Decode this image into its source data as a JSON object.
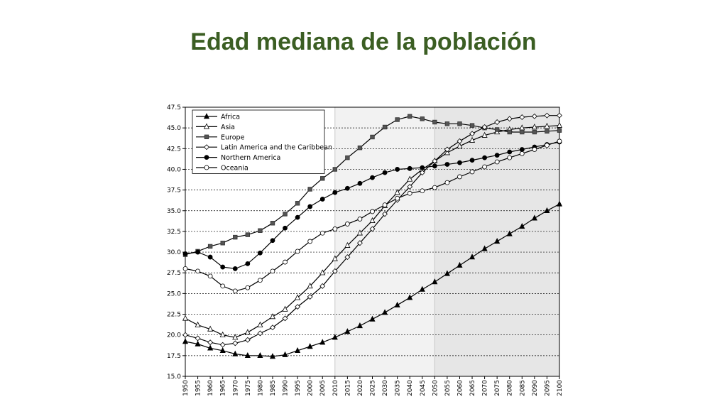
{
  "slide": {
    "title": "Edad mediana de la población"
  },
  "chart_data": {
    "type": "line",
    "title": "",
    "xlabel": "",
    "ylabel": "",
    "ylim": [
      15.0,
      47.5
    ],
    "y_ticks": [
      "15.0",
      "17.5",
      "20.0",
      "22.5",
      "25.0",
      "27.5",
      "30.0",
      "32.5",
      "35.0",
      "37.5",
      "40.0",
      "42.5",
      "45.0",
      "47.5"
    ],
    "x": [
      1950,
      1955,
      1960,
      1965,
      1970,
      1975,
      1980,
      1985,
      1990,
      1995,
      2000,
      2005,
      2010,
      2015,
      2020,
      2025,
      2030,
      2035,
      2040,
      2045,
      2050,
      2055,
      2060,
      2065,
      2070,
      2075,
      2080,
      2085,
      2090,
      2095,
      2100
    ],
    "x_tick_labels": [
      "1950",
      "1955",
      "1960",
      "1965",
      "1970",
      "1975",
      "1980",
      "1985",
      "1990",
      "1995",
      "2000",
      "2005",
      "2010",
      "2015",
      "2020",
      "2025",
      "2030",
      "2035",
      "2040",
      "2045",
      "2050",
      "2055",
      "2060",
      "2065",
      "2070",
      "2075",
      "2080",
      "2085",
      "2090",
      "2095",
      "2100"
    ],
    "background_bands": [
      {
        "from": 1950,
        "to": 2010,
        "color": "#ffffff"
      },
      {
        "from": 2010,
        "to": 2050,
        "color": "#f2f2f2"
      },
      {
        "from": 2050,
        "to": 2100,
        "color": "#e6e6e6"
      }
    ],
    "grid": "horizontal-dashed",
    "legend_position": "top-left",
    "series": [
      {
        "name": "Africa",
        "marker": "triangle-filled",
        "values": [
          19.2,
          18.9,
          18.4,
          18.1,
          17.7,
          17.5,
          17.5,
          17.4,
          17.6,
          18.1,
          18.6,
          19.1,
          19.7,
          20.4,
          21.1,
          21.9,
          22.7,
          23.6,
          24.5,
          25.5,
          26.4,
          27.4,
          28.4,
          29.4,
          30.4,
          31.3,
          32.2,
          33.1,
          34.1,
          35.0,
          35.8
        ]
      },
      {
        "name": "Asia",
        "marker": "triangle-open",
        "values": [
          22.0,
          21.2,
          20.7,
          20.0,
          19.7,
          20.3,
          21.2,
          22.2,
          23.1,
          24.5,
          25.9,
          27.5,
          29.2,
          30.8,
          32.3,
          33.8,
          35.6,
          37.2,
          38.8,
          40.0,
          41.0,
          42.0,
          42.8,
          43.5,
          44.1,
          44.5,
          44.8,
          45.0,
          45.1,
          45.2,
          45.3
        ]
      },
      {
        "name": "Europe",
        "marker": "square-filled",
        "values": [
          29.7,
          30.1,
          30.7,
          31.1,
          31.8,
          32.1,
          32.6,
          33.5,
          34.6,
          35.9,
          37.6,
          38.9,
          40.0,
          41.4,
          42.6,
          43.9,
          45.1,
          46.0,
          46.4,
          46.1,
          45.7,
          45.5,
          45.5,
          45.3,
          45.0,
          44.8,
          44.5,
          44.5,
          44.5,
          44.6,
          44.7
        ]
      },
      {
        "name": "Latin America and the Caribbean",
        "marker": "diamond-open",
        "values": [
          20.0,
          19.6,
          19.1,
          18.8,
          19.0,
          19.4,
          20.2,
          20.9,
          22.0,
          23.4,
          24.6,
          25.9,
          27.7,
          29.4,
          31.1,
          32.8,
          34.6,
          36.3,
          37.9,
          39.6,
          41.0,
          42.4,
          43.4,
          44.3,
          45.1,
          45.7,
          46.1,
          46.3,
          46.4,
          46.5,
          46.5
        ]
      },
      {
        "name": "Northern America",
        "marker": "circle-filled",
        "values": [
          29.8,
          30.0,
          29.4,
          28.2,
          28.0,
          28.6,
          29.9,
          31.4,
          32.9,
          34.2,
          35.5,
          36.4,
          37.2,
          37.7,
          38.3,
          39.0,
          39.6,
          40.0,
          40.1,
          40.2,
          40.4,
          40.6,
          40.8,
          41.1,
          41.4,
          41.7,
          42.1,
          42.4,
          42.7,
          43.0,
          43.3
        ]
      },
      {
        "name": "Oceania",
        "marker": "circle-open",
        "values": [
          28.0,
          27.7,
          27.1,
          25.9,
          25.3,
          25.7,
          26.6,
          27.7,
          28.8,
          30.1,
          31.3,
          32.3,
          32.8,
          33.4,
          34.0,
          34.9,
          35.7,
          36.5,
          37.1,
          37.4,
          37.8,
          38.4,
          39.1,
          39.7,
          40.3,
          40.9,
          41.4,
          41.9,
          42.4,
          42.9,
          43.4
        ]
      }
    ]
  }
}
